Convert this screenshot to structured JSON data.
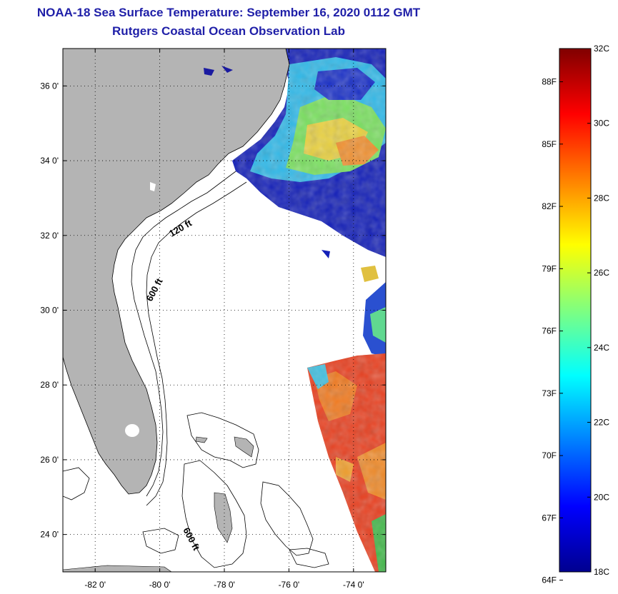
{
  "title": {
    "line1": "NOAA-18 Sea Surface Temperature:  September 16, 2020 0112 GMT",
    "line2": "Rutgers Coastal Ocean Observation Lab"
  },
  "map": {
    "lon_range": [
      -83,
      -73
    ],
    "lat_range": [
      23,
      37
    ],
    "x_ticks": [
      {
        "lon": -82,
        "label": "-82 0'"
      },
      {
        "lon": -80,
        "label": "-80 0'"
      },
      {
        "lon": -78,
        "label": "-78 0'"
      },
      {
        "lon": -76,
        "label": "-76 0'"
      },
      {
        "lon": -74,
        "label": "-74 0'"
      }
    ],
    "y_ticks": [
      {
        "lat": 36,
        "label": "36 0'"
      },
      {
        "lat": 34,
        "label": "34 0'"
      },
      {
        "lat": 32,
        "label": "32 0'"
      },
      {
        "lat": 30,
        "label": "30 0'"
      },
      {
        "lat": 28,
        "label": "28 0'"
      },
      {
        "lat": 26,
        "label": "26 0'"
      },
      {
        "lat": 24,
        "label": "24 0'"
      }
    ],
    "grid": "dotted",
    "contour_labels": {
      "shelf_north": "120 ft",
      "slope_north": "600 ft",
      "slope_south": "600 ft"
    },
    "colors": {
      "land": "#b4b4b4",
      "ocean": "#ffffff",
      "contour": "#000000"
    }
  },
  "colorbar": {
    "range_c": [
      18,
      32
    ],
    "left_labels": [
      "88F",
      "85F",
      "82F",
      "79F",
      "76F",
      "73F",
      "70F",
      "67F",
      "64F"
    ],
    "left_values_f": [
      88,
      85,
      82,
      79,
      76,
      73,
      70,
      67,
      64
    ],
    "right_labels": [
      "32C",
      "30C",
      "28C",
      "26C",
      "24C",
      "22C",
      "20C",
      "18C"
    ],
    "right_values_c": [
      32,
      30,
      28,
      26,
      24,
      22,
      20,
      18
    ]
  }
}
